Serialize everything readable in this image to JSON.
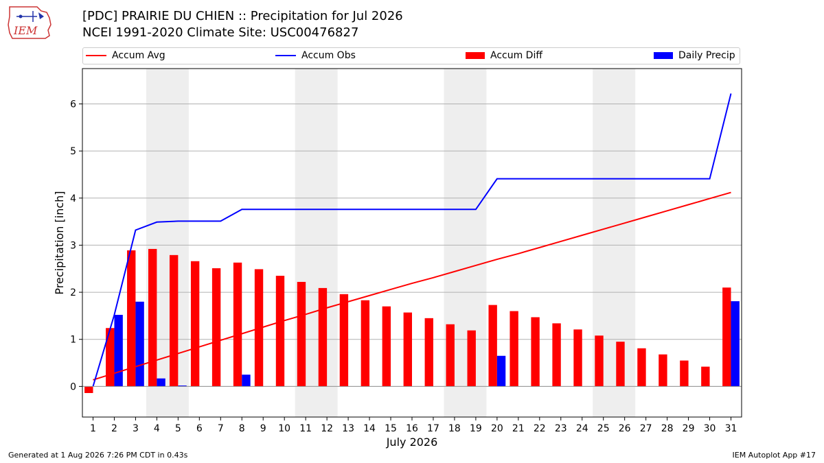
{
  "header": {
    "title_line1": "[PDC] PRAIRIE DU CHIEN :: Precipitation for Jul 2026",
    "title_line2": "NCEI 1991-2020 Climate Site: USC00476827",
    "logo_text": "IEM"
  },
  "footer": {
    "generated": "Generated at 1 Aug 2026 7:26 PM CDT in 0.43s",
    "app": "IEM Autoplot App #17"
  },
  "chart_data": {
    "type": "bar",
    "xlabel": "July 2026",
    "ylabel": "Precipitation [inch]",
    "xlim": [
      0.5,
      31.5
    ],
    "ylim": [
      -0.65,
      6.75
    ],
    "yticks": [
      0,
      1,
      2,
      3,
      4,
      5,
      6
    ],
    "grid": "horizontal",
    "legend_position": "top",
    "weekend_shading": [
      [
        3.5,
        5.5
      ],
      [
        10.5,
        12.5
      ],
      [
        17.5,
        19.5
      ],
      [
        24.5,
        26.5
      ]
    ],
    "categories": [
      1,
      2,
      3,
      4,
      5,
      6,
      7,
      8,
      9,
      10,
      11,
      12,
      13,
      14,
      15,
      16,
      17,
      18,
      19,
      20,
      21,
      22,
      23,
      24,
      25,
      26,
      27,
      28,
      29,
      30,
      31
    ],
    "series": [
      {
        "name": "Accum Avg",
        "kind": "line",
        "color": "#ff0000",
        "values": [
          0.14,
          0.28,
          0.42,
          0.56,
          0.7,
          0.84,
          0.98,
          1.12,
          1.26,
          1.4,
          1.53,
          1.67,
          1.8,
          1.93,
          2.06,
          2.19,
          2.31,
          2.44,
          2.57,
          2.7,
          2.82,
          2.95,
          3.08,
          3.21,
          3.34,
          3.47,
          3.6,
          3.73,
          3.86,
          3.99,
          4.12
        ]
      },
      {
        "name": "Accum Obs",
        "kind": "line",
        "color": "#0000ff",
        "values": [
          0.0,
          1.52,
          3.32,
          3.49,
          3.51,
          3.51,
          3.51,
          3.76,
          3.76,
          3.76,
          3.76,
          3.76,
          3.76,
          3.76,
          3.76,
          3.76,
          3.76,
          3.76,
          3.76,
          4.41,
          4.41,
          4.41,
          4.41,
          4.41,
          4.41,
          4.41,
          4.41,
          4.41,
          4.41,
          4.41,
          6.22
        ]
      },
      {
        "name": "Accum Diff",
        "kind": "bar",
        "color": "#ff0000",
        "values": [
          -0.14,
          1.24,
          2.89,
          2.92,
          2.79,
          2.66,
          2.51,
          2.63,
          2.49,
          2.35,
          2.22,
          2.09,
          1.96,
          1.83,
          1.7,
          1.57,
          1.45,
          1.32,
          1.19,
          1.73,
          1.6,
          1.47,
          1.34,
          1.21,
          1.08,
          0.95,
          0.81,
          0.68,
          0.55,
          0.42,
          2.1
        ]
      },
      {
        "name": "Daily Precip",
        "kind": "bar",
        "color": "#0000ff",
        "values": [
          0.0,
          1.52,
          1.8,
          0.17,
          0.02,
          0.0,
          0.0,
          0.25,
          0.0,
          0.0,
          0.0,
          0.0,
          0.0,
          0.0,
          0.0,
          0.0,
          0.0,
          0.0,
          0.0,
          0.65,
          0.0,
          0.0,
          0.0,
          0.0,
          0.0,
          0.0,
          0.0,
          0.0,
          0.0,
          0.0,
          1.81
        ]
      }
    ]
  }
}
